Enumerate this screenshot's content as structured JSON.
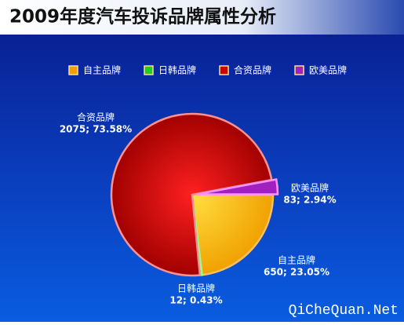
{
  "chart_data": {
    "type": "pie",
    "title": "2009年度汽车投诉品牌属性分析",
    "categories": [
      "自主品牌",
      "日韩品牌",
      "合资品牌",
      "欧美品牌"
    ],
    "values": [
      650,
      12,
      2075,
      83
    ],
    "value_labels": [
      "650; 23.05%",
      "12; 0.43%",
      "2075; 73.58%",
      "83; 2.94%"
    ],
    "colors": [
      "#f0a000",
      "#22cc22",
      "#d00000",
      "#a020c0"
    ],
    "legend": "top"
  },
  "watermark": "QiCheQuan.Net"
}
